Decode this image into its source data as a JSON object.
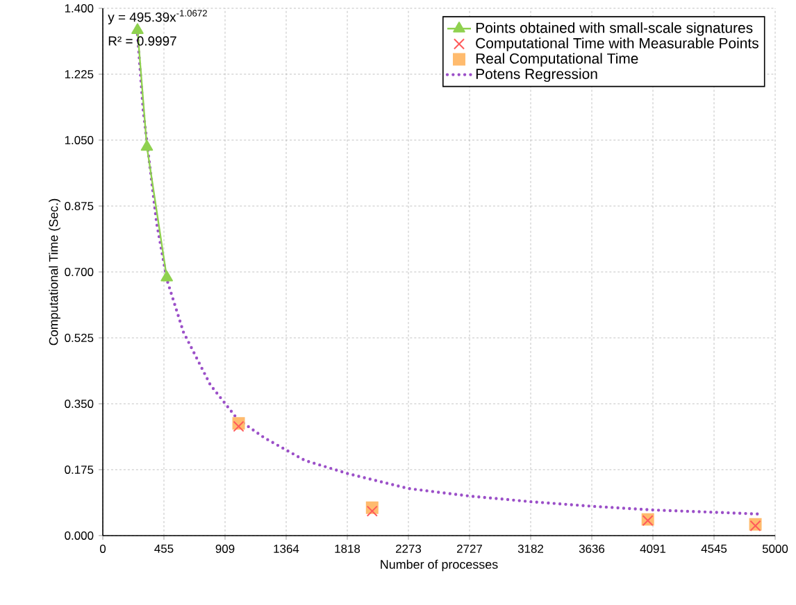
{
  "chart_data": {
    "type": "scatter",
    "xlabel": "Number of processes",
    "ylabel": "Computational Time (Sec.)",
    "annotations": [
      "y = 495.39x$^{-1.0672}$",
      "R² = 0.9997"
    ],
    "xlim": [
      0,
      5000
    ],
    "ylim": [
      0,
      1.4
    ],
    "xticks": [
      0,
      {
        "value": 454.5,
        "label": "455"
      },
      {
        "value": 909.1,
        "label": "909"
      },
      {
        "value": 1363.6,
        "label": "1364"
      },
      {
        "value": 1818.2,
        "label": "1818"
      },
      {
        "value": 2272.7,
        "label": "2273"
      },
      {
        "value": 2727.3,
        "label": "2727"
      },
      {
        "value": 3181.8,
        "label": "3182"
      },
      {
        "value": 3636.4,
        "label": "3636"
      },
      {
        "value": 4090.9,
        "label": "4091"
      },
      {
        "value": 4545.5,
        "label": "4545"
      },
      5000
    ],
    "yticks": [
      {
        "value": 0,
        "label": "0.000"
      },
      {
        "value": 0.175,
        "label": "0.175"
      },
      {
        "value": 0.35,
        "label": "0.350"
      },
      {
        "value": 0.525,
        "label": "0.525"
      },
      {
        "value": 0.7,
        "label": "0.700"
      },
      {
        "value": 0.875,
        "label": "0.875"
      },
      {
        "value": 1.05,
        "label": "1.050"
      },
      {
        "value": 1.225,
        "label": "1.225"
      },
      {
        "value": 1.4,
        "label": "1.400"
      }
    ],
    "grid": true,
    "legend": "top right",
    "series": [
      {
        "name": "Points obtained with small-scale signatures",
        "type": "line",
        "marker": "triangle",
        "line_style": "solid",
        "color": "#8fd14f",
        "x": [
          258,
          328,
          476
        ],
        "values": [
          1.342,
          1.032,
          0.685
        ]
      },
      {
        "name": "Computational Time with Measurable Points",
        "marker": "cross",
        "color": "#ff5a5a",
        "x": [
          1010,
          2003,
          4053,
          4853
        ],
        "values": [
          0.29,
          0.065,
          0.04,
          0.026
        ]
      },
      {
        "name": "Real Computational Time",
        "marker": "square",
        "color": "#ffbb6e",
        "x": [
          1010,
          2003,
          4053,
          4853
        ],
        "values": [
          0.298,
          0.074,
          0.043,
          0.03
        ]
      },
      {
        "name": "Potens Regression",
        "type": "line",
        "marker": "none",
        "line_style": "dotted",
        "color": "#9b4fc8",
        "x": [
          258,
          300,
          400,
          476,
          600,
          800,
          1000,
          1200,
          1500,
          1818,
          2273,
          2727,
          3182,
          3636,
          4091,
          4545,
          4900
        ],
        "values": [
          1.33,
          1.13,
          0.83,
          0.68,
          0.54,
          0.4,
          0.31,
          0.26,
          0.2,
          0.165,
          0.125,
          0.105,
          0.09,
          0.078,
          0.068,
          0.062,
          0.057
        ]
      }
    ]
  }
}
